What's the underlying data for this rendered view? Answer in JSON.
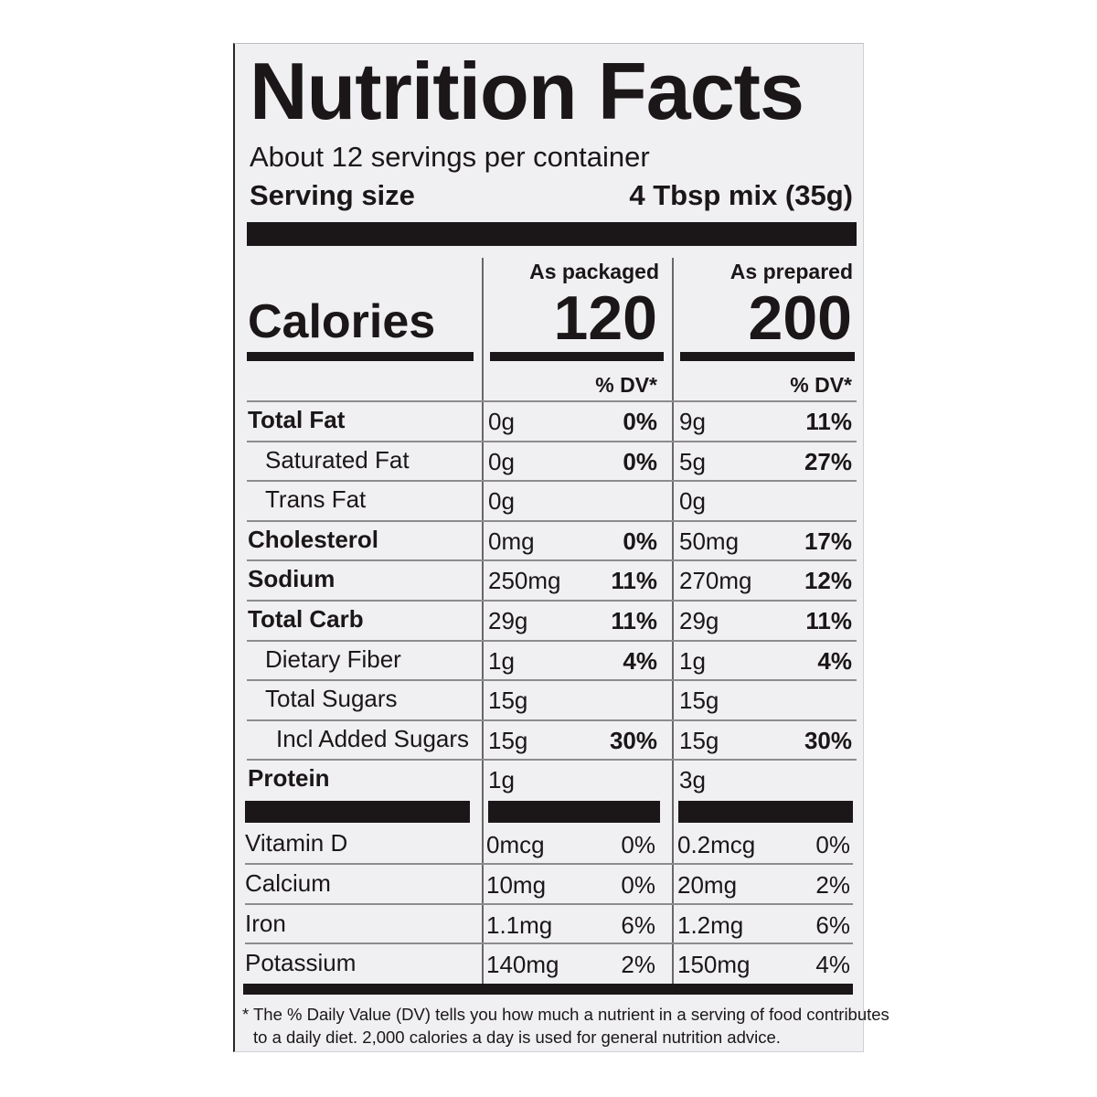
{
  "title": "Nutrition Facts",
  "servings_per_container": "About 12 servings per container",
  "serving_size_label": "Serving size",
  "serving_size_value": "4 Tbsp mix (35g)",
  "calories_label": "Calories",
  "columns": [
    {
      "heading": "As packaged",
      "calories": "120",
      "dv_heading": "% DV*"
    },
    {
      "heading": "As prepared",
      "calories": "200",
      "dv_heading": "% DV*"
    }
  ],
  "nutrients": [
    {
      "name": "Total Fat",
      "bold": true,
      "indent": 0,
      "packaged_amount": "0g",
      "packaged_dv": "0%",
      "prepared_amount": "9g",
      "prepared_dv": "11%"
    },
    {
      "name": "Saturated Fat",
      "bold": false,
      "indent": 1,
      "packaged_amount": "0g",
      "packaged_dv": "0%",
      "prepared_amount": "5g",
      "prepared_dv": "27%"
    },
    {
      "name": "Trans Fat",
      "bold": false,
      "indent": 1,
      "packaged_amount": "0g",
      "packaged_dv": "",
      "prepared_amount": "0g",
      "prepared_dv": ""
    },
    {
      "name": "Cholesterol",
      "bold": true,
      "indent": 0,
      "packaged_amount": "0mg",
      "packaged_dv": "0%",
      "prepared_amount": "50mg",
      "prepared_dv": "17%"
    },
    {
      "name": "Sodium",
      "bold": true,
      "indent": 0,
      "packaged_amount": "250mg",
      "packaged_dv": "11%",
      "prepared_amount": "270mg",
      "prepared_dv": "12%"
    },
    {
      "name": "Total Carb",
      "bold": true,
      "indent": 0,
      "packaged_amount": "29g",
      "packaged_dv": "11%",
      "prepared_amount": "29g",
      "prepared_dv": "11%"
    },
    {
      "name": "Dietary Fiber",
      "bold": false,
      "indent": 1,
      "packaged_amount": "1g",
      "packaged_dv": "4%",
      "prepared_amount": "1g",
      "prepared_dv": "4%"
    },
    {
      "name": "Total Sugars",
      "bold": false,
      "indent": 1,
      "packaged_amount": "15g",
      "packaged_dv": "",
      "prepared_amount": "15g",
      "prepared_dv": ""
    },
    {
      "name": "Incl Added Sugars",
      "bold": false,
      "indent": 2,
      "packaged_amount": "15g",
      "packaged_dv": "30%",
      "prepared_amount": "15g",
      "prepared_dv": "30%"
    },
    {
      "name": "Protein",
      "bold": true,
      "indent": 0,
      "packaged_amount": "1g",
      "packaged_dv": "",
      "prepared_amount": "3g",
      "prepared_dv": ""
    }
  ],
  "vitamins": [
    {
      "name": "Vitamin D",
      "packaged_amount": "0mcg",
      "packaged_dv": "0%",
      "prepared_amount": "0.2mcg",
      "prepared_dv": "0%"
    },
    {
      "name": "Calcium",
      "packaged_amount": "10mg",
      "packaged_dv": "0%",
      "prepared_amount": "20mg",
      "prepared_dv": "2%"
    },
    {
      "name": "Iron",
      "packaged_amount": "1.1mg",
      "packaged_dv": "6%",
      "prepared_amount": "1.2mg",
      "prepared_dv": "6%"
    },
    {
      "name": "Potassium",
      "packaged_amount": "140mg",
      "packaged_dv": "2%",
      "prepared_amount": "150mg",
      "prepared_dv": "4%"
    }
  ],
  "footnote": [
    "* The % Daily Value (DV) tells you how much a nutrient in a serving of food contributes",
    "to a daily diet. 2,000 calories a day is used for general nutrition advice."
  ],
  "colors": {
    "ink": "#1b1718",
    "panel": "#f0eff1"
  }
}
